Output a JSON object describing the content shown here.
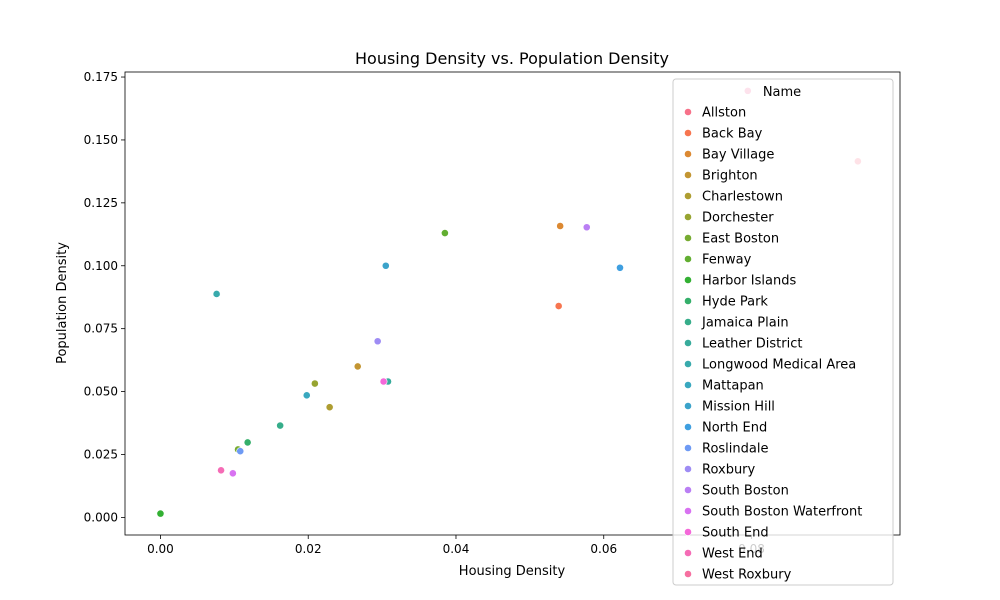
{
  "chart_data": {
    "type": "scatter",
    "title": "Housing Density vs. Population Density",
    "xlabel": "Housing Density",
    "ylabel": "Population Density",
    "xlim": [
      -0.0048,
      0.1001
    ],
    "ylim": [
      -0.007,
      0.177
    ],
    "xticks": [
      0.0,
      0.02,
      0.04,
      0.06,
      0.08
    ],
    "xtick_labels": [
      "0.00",
      "0.02",
      "0.04",
      "0.06",
      "0.08"
    ],
    "yticks": [
      0.0,
      0.025,
      0.05,
      0.075,
      0.1,
      0.125,
      0.15,
      0.175
    ],
    "ytick_labels": [
      "0.000",
      "0.025",
      "0.050",
      "0.075",
      "0.100",
      "0.125",
      "0.150",
      "0.175"
    ],
    "grid": false,
    "legend": {
      "title": "Name",
      "placement": "upper-right"
    },
    "series": [
      {
        "name": "Allston",
        "color": "#f77189",
        "x": [
          0.0944
        ],
        "y": [
          0.1415
        ]
      },
      {
        "name": "Back Bay",
        "color": "#f7754f",
        "x": [
          0.0539
        ],
        "y": [
          0.084
        ]
      },
      {
        "name": "Bay Village",
        "color": "#dc8932",
        "x": [
          0.0541
        ],
        "y": [
          0.1158
        ]
      },
      {
        "name": "Brighton",
        "color": "#c39532",
        "x": [
          0.0267
        ],
        "y": [
          0.06
        ]
      },
      {
        "name": "Charlestown",
        "color": "#ae9d31",
        "x": [
          0.0229
        ],
        "y": [
          0.0438
        ]
      },
      {
        "name": "Dorchester",
        "color": "#97a431",
        "x": [
          0.0209
        ],
        "y": [
          0.0532
        ]
      },
      {
        "name": "East Boston",
        "color": "#77ab31",
        "x": [
          0.0105
        ],
        "y": [
          0.027
        ]
      },
      {
        "name": "Fenway",
        "color": "#62ae31",
        "x": [
          0.0385
        ],
        "y": [
          0.113
        ]
      },
      {
        "name": "Harbor Islands",
        "color": "#33b033",
        "x": [
          0.0
        ],
        "y": [
          0.0015
        ]
      },
      {
        "name": "Hyde Park",
        "color": "#34af6a",
        "x": [
          0.0118
        ],
        "y": [
          0.0298
        ]
      },
      {
        "name": "Jamaica Plain",
        "color": "#36ad8a",
        "x": [
          0.0162
        ],
        "y": [
          0.0365
        ]
      },
      {
        "name": "Leather District",
        "color": "#37ab9b",
        "x": [
          0.0308
        ],
        "y": [
          0.054
        ]
      },
      {
        "name": "Longwood Medical Area",
        "color": "#38aaac",
        "x": [
          0.0076
        ],
        "y": [
          0.0888
        ]
      },
      {
        "name": "Mattapan",
        "color": "#39a8bf",
        "x": [
          0.0198
        ],
        "y": [
          0.0485
        ]
      },
      {
        "name": "Mission Hill",
        "color": "#3ba3ca",
        "x": [
          0.0305
        ],
        "y": [
          0.1
        ]
      },
      {
        "name": "North End",
        "color": "#3f9fe0",
        "x": [
          0.0622
        ],
        "y": [
          0.0992
        ]
      },
      {
        "name": "Roslindale",
        "color": "#6e9af4",
        "x": [
          0.0108
        ],
        "y": [
          0.0263
        ]
      },
      {
        "name": "Roxbury",
        "color": "#9e8cf4",
        "x": [
          0.0294
        ],
        "y": [
          0.07
        ]
      },
      {
        "name": "South Boston",
        "color": "#ba7ff4",
        "x": [
          0.0577
        ],
        "y": [
          0.1153
        ]
      },
      {
        "name": "South Boston Waterfront",
        "color": "#d872f1",
        "x": [
          0.0098
        ],
        "y": [
          0.0175
        ]
      },
      {
        "name": "South End",
        "color": "#f468d9",
        "x": [
          0.0302
        ],
        "y": [
          0.054
        ]
      },
      {
        "name": "West End",
        "color": "#f56cb6",
        "x": [
          0.0082
        ],
        "y": [
          0.0187
        ]
      },
      {
        "name": "West Roxbury",
        "color": "#f66fa0",
        "x": [
          0.0795
        ],
        "y": [
          0.1695
        ]
      }
    ]
  }
}
